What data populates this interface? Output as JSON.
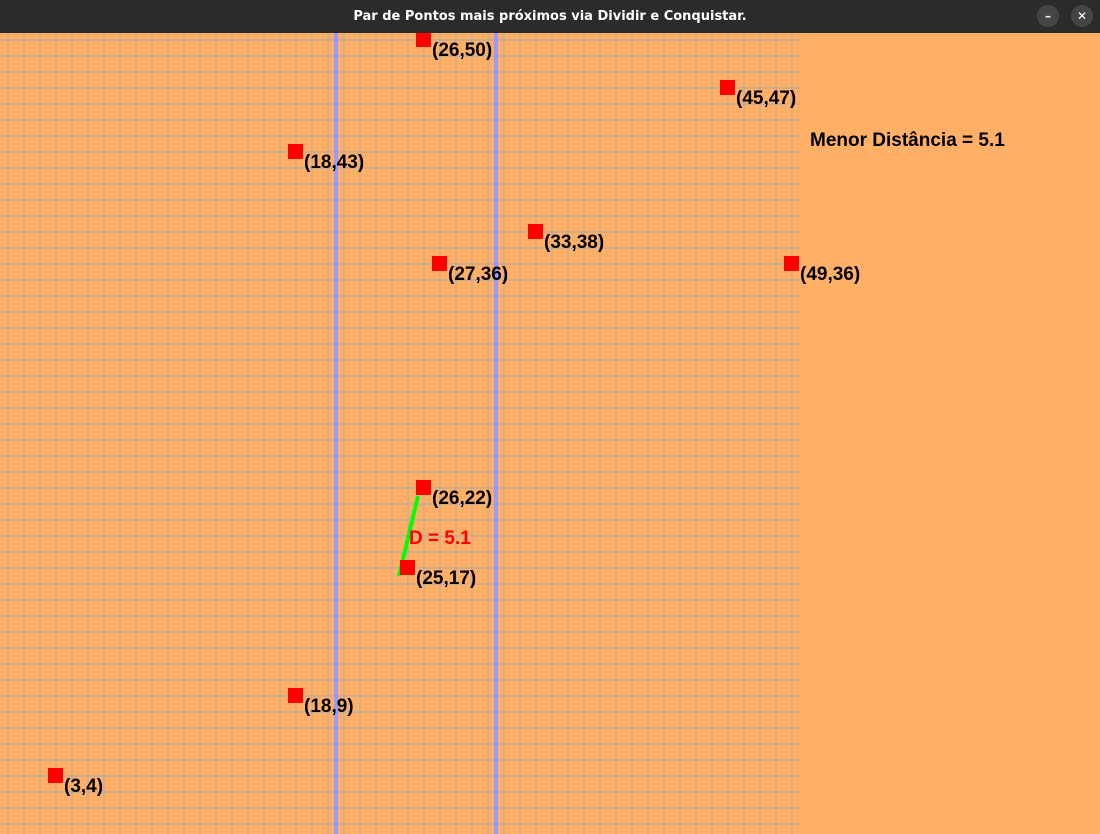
{
  "window": {
    "title": "Par de Pontos mais próximos via Dividir e Conquistar.",
    "minimize_icon": "–",
    "close_icon": "✕"
  },
  "colors": {
    "background": "#ffb066",
    "grid": "#a8a8a8",
    "divider": "#9999ff",
    "point": "#ff0000",
    "closest_line": "#00ff00",
    "distance_label": "#ff0000",
    "point_label": "#000000"
  },
  "plane": {
    "x_range": [
      0,
      50
    ],
    "y_range": [
      0,
      50
    ],
    "grid_step": 1
  },
  "divider_lines_x": [
    20.5,
    30.5
  ],
  "points": [
    {
      "x": 26,
      "y": 50,
      "label": "(26,50)"
    },
    {
      "x": 45,
      "y": 47,
      "label": "(45,47)"
    },
    {
      "x": 18,
      "y": 43,
      "label": "(18,43)"
    },
    {
      "x": 33,
      "y": 38,
      "label": "(33,38)"
    },
    {
      "x": 27,
      "y": 36,
      "label": "(27,36)"
    },
    {
      "x": 49,
      "y": 36,
      "label": "(49,36)"
    },
    {
      "x": 26,
      "y": 22,
      "label": "(26,22)"
    },
    {
      "x": 25,
      "y": 17,
      "label": "(25,17)"
    },
    {
      "x": 18,
      "y": 9,
      "label": "(18,9)"
    },
    {
      "x": 3,
      "y": 4,
      "label": "(3,4)"
    }
  ],
  "closest_pair": {
    "from": [
      26,
      22
    ],
    "to": [
      25,
      17
    ],
    "label": "D = 5.1"
  },
  "summary": "Menor Distância = 5.1"
}
